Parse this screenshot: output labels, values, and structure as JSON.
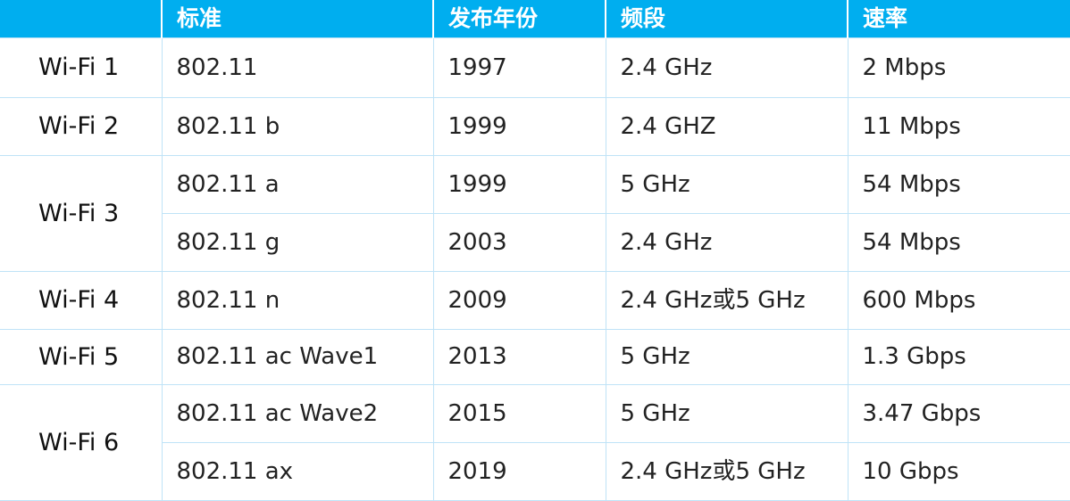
{
  "headers": [
    "",
    "标准",
    "发布年份",
    "频段",
    "速率"
  ],
  "rows": [
    {
      "gen": "Wi-Fi 1",
      "standard": "802.11",
      "year": "1997",
      "band": "2.4 GHz",
      "rate": "2 Mbps"
    },
    {
      "gen": "Wi-Fi 2",
      "standard": "802.11 b",
      "year": "1999",
      "band": "2.4 GHZ",
      "rate": "11 Mbps"
    },
    {
      "gen": "Wi-Fi 3",
      "standard": "802.11 a",
      "year": "1999",
      "band": "5 GHz",
      "rate": "54 Mbps"
    },
    {
      "gen": "",
      "standard": "802.11 g",
      "year": "2003",
      "band": "2.4 GHz",
      "rate": "54 Mbps"
    },
    {
      "gen": "Wi-Fi 4",
      "standard": "802.11 n",
      "year": "2009",
      "band": "2.4 GHz或5 GHz",
      "rate": "600 Mbps"
    },
    {
      "gen": "Wi-Fi 5",
      "standard": "802.11 ac Wave1",
      "year": "2013",
      "band": "5 GHz",
      "rate": "1.3 Gbps"
    },
    {
      "gen": "Wi-Fi 6",
      "standard": "802.11 ac Wave2",
      "year": "2015",
      "band": "5 GHz",
      "rate": "3.47 Gbps"
    },
    {
      "gen": "",
      "standard": "802.11 ax",
      "year": "2019",
      "band": "2.4 GHz或5 GHz",
      "rate": "10 Gbps"
    }
  ],
  "colors": {
    "header_bg": "#00aeef",
    "header_text": "#ffffff",
    "grid_line": "#bfe3f7",
    "body_text": "#222222"
  }
}
